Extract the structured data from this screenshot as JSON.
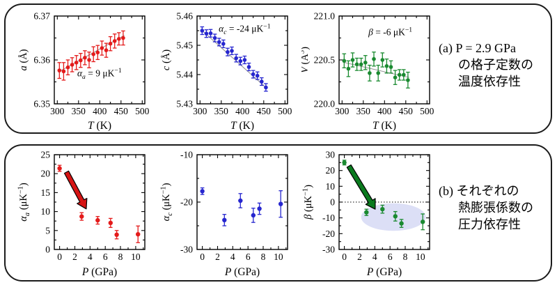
{
  "panel_a": {
    "caption": {
      "line1": "(a) P = 2.9 GPa",
      "line2": "の格子定数の",
      "line3": "温度依存性"
    }
  },
  "panel_b": {
    "caption": {
      "line1": "(b) それぞれの",
      "line2": "熱膨張係数の",
      "line3": "圧力依存性"
    }
  },
  "colors": {
    "red": "#e41a1a",
    "blue": "#2626cf",
    "green": "#1a8a30",
    "fit_gray": "#8f8f8f",
    "ellipse": "#dcdff6"
  },
  "chart_data": [
    {
      "id": "a-vs-T",
      "type": "scatter",
      "color": "#e41a1a",
      "x": [
        305,
        315,
        325,
        335,
        345,
        355,
        365,
        375,
        385,
        395,
        405,
        415,
        425,
        435,
        445,
        455
      ],
      "y": [
        6.3576,
        6.3574,
        6.3583,
        6.3589,
        6.3594,
        6.3599,
        6.3605,
        6.36,
        6.3613,
        6.3617,
        6.3627,
        6.3622,
        6.3637,
        6.3643,
        6.3648,
        6.365
      ],
      "yerr": [
        0.0018,
        0.002,
        0.0017,
        0.0016,
        0.0016,
        0.0016,
        0.0016,
        0.0018,
        0.0017,
        0.0016,
        0.0016,
        0.0016,
        0.0016,
        0.0016,
        0.0014,
        0.0016
      ],
      "xlim": [
        293,
        506
      ],
      "ylim": [
        6.35,
        6.37
      ],
      "xticks": {
        "values": [
          300,
          350,
          400,
          450,
          500
        ],
        "labels": [
          "300",
          "350",
          "400",
          "450",
          "500"
        ],
        "minor": [
          325,
          375,
          425,
          475
        ]
      },
      "yticks": {
        "values": [
          6.35,
          6.36,
          6.37
        ],
        "labels": [
          "6.35",
          "6.36",
          "6.37"
        ],
        "minor": [
          6.355,
          6.365
        ]
      },
      "xlabel": [
        {
          "t": "T",
          "i": 1
        },
        {
          "t": " (K)"
        }
      ],
      "ylabel": [
        {
          "t": "a",
          "i": 1
        },
        {
          "t": " (Å)"
        }
      ],
      "fit": {
        "x1": 302,
        "y1": 6.3572,
        "x2": 458,
        "y2": 6.3656
      },
      "annotation": {
        "x": 347,
        "y": 6.3563,
        "size": 13.5,
        "segs": [
          {
            "t": "α",
            "i": 1
          },
          {
            "t": "a",
            "i": 1,
            "sub": 1
          },
          {
            "t": " = 9 μK"
          },
          {
            "t": "−1",
            "sup": 1
          }
        ]
      }
    },
    {
      "id": "c-vs-T",
      "type": "scatter",
      "color": "#2626cf",
      "x": [
        305,
        315,
        325,
        335,
        345,
        355,
        365,
        375,
        385,
        395,
        405,
        415,
        425,
        435,
        445,
        455
      ],
      "y": [
        5.455,
        5.454,
        5.4541,
        5.4525,
        5.4511,
        5.4505,
        5.4477,
        5.4481,
        5.4456,
        5.4446,
        5.445,
        5.4426,
        5.4401,
        5.4396,
        5.4376,
        5.4356
      ],
      "yerr": [
        0.0013,
        0.0013,
        0.0013,
        0.0013,
        0.0013,
        0.0013,
        0.0013,
        0.0013,
        0.0013,
        0.0013,
        0.0013,
        0.0013,
        0.0013,
        0.0013,
        0.0013,
        0.0013
      ],
      "xlim": [
        293,
        506
      ],
      "ylim": [
        5.43,
        5.46
      ],
      "xticks": {
        "values": [
          300,
          350,
          400,
          450,
          500
        ],
        "labels": [
          "300",
          "350",
          "400",
          "450",
          "500"
        ],
        "minor": [
          325,
          375,
          425,
          475
        ]
      },
      "yticks": {
        "values": [
          5.43,
          5.44,
          5.45,
          5.46
        ],
        "labels": [
          "5.43",
          "5.44",
          "5.45",
          "5.46"
        ],
        "minor": [
          5.435,
          5.445,
          5.455
        ]
      },
      "xlabel": [
        {
          "t": "T",
          "i": 1
        },
        {
          "t": " (K)"
        }
      ],
      "ylabel": [
        {
          "t": "c",
          "i": 1
        },
        {
          "t": " (Å)"
        }
      ],
      "fit": {
        "x1": 302,
        "y1": 5.4554,
        "x2": 458,
        "y2": 5.4352
      },
      "annotation": {
        "x": 344,
        "y": 5.4546,
        "size": 13.5,
        "segs": [
          {
            "t": "α",
            "i": 1
          },
          {
            "t": "c",
            "i": 1,
            "sub": 1
          },
          {
            "t": " = -24 μK"
          },
          {
            "t": "−1",
            "sup": 1
          }
        ]
      }
    },
    {
      "id": "V-vs-T",
      "type": "scatter",
      "color": "#1a8a30",
      "x": [
        305,
        315,
        325,
        335,
        345,
        355,
        365,
        375,
        385,
        395,
        405,
        415,
        425,
        435,
        445,
        455
      ],
      "y": [
        220.49,
        220.4,
        220.5,
        220.45,
        220.45,
        220.47,
        220.35,
        220.51,
        220.35,
        220.5,
        220.43,
        220.42,
        220.3,
        220.33,
        220.33,
        220.27
      ],
      "yerr": [
        0.08,
        0.09,
        0.08,
        0.07,
        0.07,
        0.08,
        0.09,
        0.08,
        0.09,
        0.08,
        0.08,
        0.07,
        0.08,
        0.06,
        0.06,
        0.09
      ],
      "xlim": [
        293,
        506
      ],
      "ylim": [
        220.0,
        221.0
      ],
      "xticks": {
        "values": [
          300,
          350,
          400,
          450,
          500
        ],
        "labels": [
          "300",
          "350",
          "400",
          "450",
          "500"
        ],
        "minor": [
          325,
          375,
          425,
          475
        ]
      },
      "yticks": {
        "values": [
          220.0,
          220.5,
          221.0
        ],
        "labels": [
          "220.0",
          "220.5",
          "221.0"
        ],
        "minor": [
          220.25,
          220.75
        ]
      },
      "xlabel": [
        {
          "t": "T",
          "i": 1
        },
        {
          "t": " (K)"
        }
      ],
      "ylabel": [
        {
          "t": "V",
          "i": 1
        },
        {
          "t": " (Å"
        },
        {
          "t": "3",
          "sup": 1
        },
        {
          "t": ")"
        }
      ],
      "fit": {
        "x1": 302,
        "y1": 220.475,
        "x2": 458,
        "y2": 220.3
      },
      "annotation": {
        "x": 362,
        "y": 220.78,
        "size": 13.5,
        "segs": [
          {
            "t": "β",
            "i": 1
          },
          {
            "t": " = -6 μK"
          },
          {
            "t": "−1",
            "sup": 1
          }
        ]
      }
    },
    {
      "id": "alpha-a-vs-P",
      "type": "scatter",
      "color": "#e41a1a",
      "x": [
        0,
        2.9,
        5.0,
        6.7,
        7.5,
        10.3
      ],
      "y": [
        21.4,
        8.7,
        7.7,
        7.0,
        3.9,
        4.0
      ],
      "yerr": [
        0.8,
        1.0,
        1.0,
        1.2,
        1.1,
        2.2
      ],
      "xlim": [
        -0.7,
        11.2
      ],
      "ylim": [
        0,
        25
      ],
      "xticks": {
        "values": [
          0,
          2,
          4,
          6,
          8,
          10
        ],
        "labels": [
          "0",
          "2",
          "4",
          "6",
          "8",
          "10"
        ],
        "minor": [
          1,
          3,
          5,
          7,
          9,
          11
        ]
      },
      "yticks": {
        "values": [
          0,
          5,
          10,
          15,
          20,
          25
        ],
        "labels": [
          "0",
          "5",
          "10",
          "15",
          "20",
          "25"
        ],
        "minor": [
          2.5,
          7.5,
          12.5,
          17.5,
          22.5
        ]
      },
      "xlabel": [
        {
          "t": "P",
          "i": 1
        },
        {
          "t": " (GPa)"
        }
      ],
      "ylabel": [
        {
          "t": "α",
          "i": 1
        },
        {
          "t": "a",
          "i": 1,
          "sub": 1
        },
        {
          "t": " (μK"
        },
        {
          "t": "−1",
          "sup": 1
        },
        {
          "t": ")"
        }
      ],
      "arrow": {
        "x1": 0.9,
        "y1": 20.4,
        "x2": 3.5,
        "y2": 10.7,
        "fill": "#d61414"
      }
    },
    {
      "id": "alpha-c-vs-P",
      "type": "scatter",
      "color": "#2626cf",
      "x": [
        0,
        2.9,
        5.0,
        6.7,
        7.5,
        10.3
      ],
      "y": [
        -17.7,
        -23.8,
        -19.7,
        -22.8,
        -21.4,
        -20.4
      ],
      "yerr": [
        0.7,
        1.2,
        1.5,
        1.5,
        1.2,
        2.8
      ],
      "xlim": [
        -0.7,
        11.2
      ],
      "ylim": [
        -30,
        -10
      ],
      "xticks": {
        "values": [
          0,
          2,
          4,
          6,
          8,
          10
        ],
        "labels": [
          "0",
          "2",
          "4",
          "6",
          "8",
          "10"
        ],
        "minor": [
          1,
          3,
          5,
          7,
          9,
          11
        ]
      },
      "yticks": {
        "values": [
          -30,
          -20,
          -10
        ],
        "labels": [
          "-30",
          "-20",
          "-10"
        ],
        "minor": [
          -25,
          -15
        ]
      },
      "xlabel": [
        {
          "t": "P",
          "i": 1
        },
        {
          "t": " (GPa)"
        }
      ],
      "ylabel": [
        {
          "t": "α",
          "i": 1
        },
        {
          "t": "c",
          "i": 1,
          "sub": 1
        },
        {
          "t": " (μK"
        },
        {
          "t": "−1",
          "sup": 1
        },
        {
          "t": ")"
        }
      ]
    },
    {
      "id": "beta-vs-P",
      "type": "scatter",
      "color": "#1a8a30",
      "x": [
        0,
        2.9,
        5.0,
        6.7,
        7.5,
        10.3
      ],
      "y": [
        25.0,
        -6.5,
        -4.5,
        -9.0,
        -13.5,
        -12.5
      ],
      "yerr": [
        1.5,
        2.0,
        2.5,
        3.0,
        2.5,
        5.0
      ],
      "xlim": [
        -0.7,
        11.2
      ],
      "ylim": [
        -30,
        30
      ],
      "xticks": {
        "values": [
          0,
          2,
          4,
          6,
          8,
          10
        ],
        "labels": [
          "0",
          "2",
          "4",
          "6",
          "8",
          "10"
        ],
        "minor": [
          1,
          3,
          5,
          7,
          9,
          11
        ]
      },
      "yticks": {
        "values": [
          -30,
          -20,
          -10,
          0,
          10,
          20,
          30
        ],
        "labels": [
          "-30",
          "-20",
          "-10",
          "0",
          "10",
          "20",
          "30"
        ],
        "minor": [
          -25,
          -15,
          -5,
          5,
          15,
          25
        ]
      },
      "xlabel": [
        {
          "t": "P",
          "i": 1
        },
        {
          "t": " (GPa)"
        }
      ],
      "ylabel": [
        {
          "t": "β",
          "i": 1
        },
        {
          "t": " (μK"
        },
        {
          "t": "−1",
          "sup": 1
        },
        {
          "t": ")"
        }
      ],
      "zeroline": 0,
      "ellipse": {
        "cx": 6.45,
        "cy": -9.5,
        "rx": 4.25,
        "ry": 8.75
      },
      "arrow": {
        "x1": 0.6,
        "y1": 22.8,
        "x2": 4.05,
        "y2": -4.5,
        "fill": "#0a7a1e"
      }
    }
  ]
}
